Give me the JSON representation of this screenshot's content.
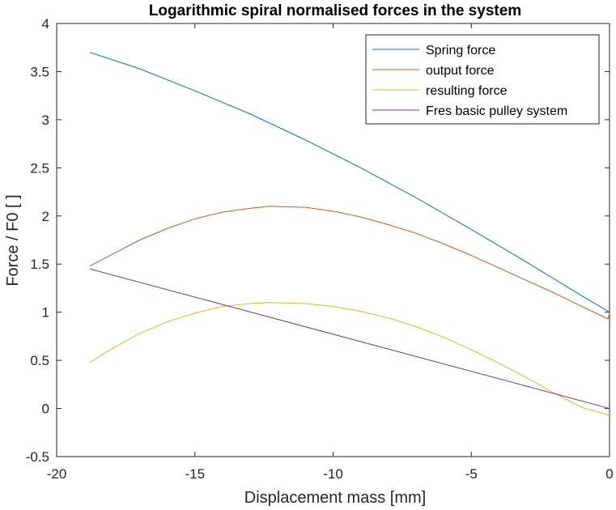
{
  "chart_data": {
    "type": "line",
    "title": "Logarithmic spiral normalised forces in the system",
    "xlabel": "Displacement mass [mm]",
    "ylabel": "Force / F0 [ ]",
    "xlim": [
      -20,
      0
    ],
    "ylim": [
      -0.5,
      4
    ],
    "xticks": [
      -20,
      -15,
      -10,
      -5,
      0
    ],
    "yticks": [
      -0.5,
      0,
      0.5,
      1,
      1.5,
      2,
      2.5,
      3,
      3.5,
      4
    ],
    "grid": false,
    "legend_position": "top-right",
    "series": [
      {
        "name": "Spring force",
        "color": "#0072BD",
        "x": [
          -18.8,
          -17,
          -15,
          -13,
          -11,
          -9,
          -7,
          -5,
          -3,
          -1,
          0
        ],
        "y": [
          3.7,
          3.53,
          3.3,
          3.06,
          2.79,
          2.5,
          2.19,
          1.86,
          1.52,
          1.17,
          1.0
        ]
      },
      {
        "name": "output force",
        "color": "#D95319",
        "x": [
          -18.8,
          -18,
          -17,
          -16,
          -15,
          -14,
          -13,
          -12.3,
          -11,
          -10,
          -9,
          -8,
          -7,
          -6,
          -5,
          -4,
          -3,
          -2,
          -1,
          -0.05,
          0
        ],
        "y": [
          1.48,
          1.6,
          1.75,
          1.87,
          1.97,
          2.04,
          2.08,
          2.1,
          2.09,
          2.05,
          1.99,
          1.91,
          1.82,
          1.71,
          1.59,
          1.46,
          1.33,
          1.2,
          1.06,
          0.93,
          0.99
        ]
      },
      {
        "name": "resulting force",
        "color": "#EDB120",
        "x": [
          -18.8,
          -18,
          -17,
          -16,
          -15,
          -14,
          -13,
          -12.3,
          -11,
          -10,
          -9,
          -8,
          -7,
          -6,
          -5,
          -4,
          -3,
          -2,
          -1,
          0
        ],
        "y": [
          0.48,
          0.62,
          0.78,
          0.9,
          0.99,
          1.06,
          1.09,
          1.1,
          1.09,
          1.06,
          1.01,
          0.94,
          0.85,
          0.74,
          0.61,
          0.47,
          0.32,
          0.16,
          0.01,
          -0.07
        ]
      },
      {
        "name": "Fres basic pulley system",
        "color": "#7E2F8E",
        "x": [
          -18.8,
          0
        ],
        "y": [
          1.45,
          0.0
        ]
      }
    ]
  }
}
